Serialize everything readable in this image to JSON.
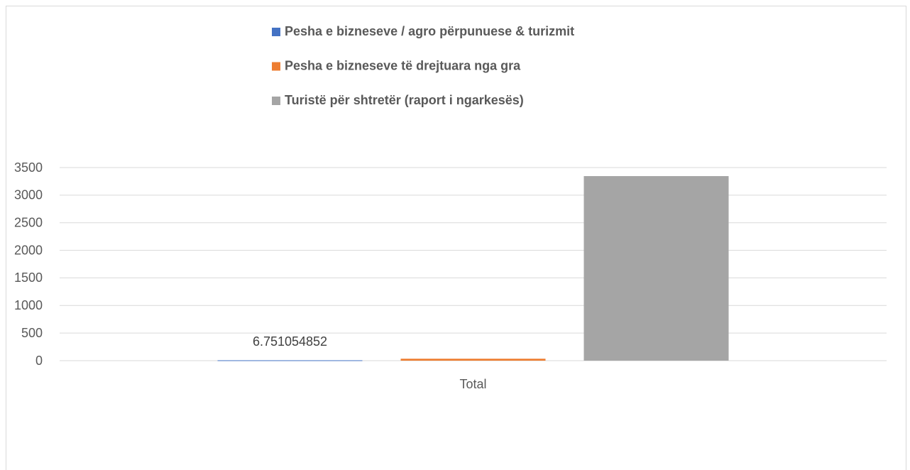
{
  "chart_data": {
    "type": "bar",
    "categories": [
      "Total"
    ],
    "series": [
      {
        "name": "Pesha e bizneseve  / agro përpunuese & turizmit",
        "color": "#4472c4",
        "values": [
          6.751054852
        ]
      },
      {
        "name": "Pesha e bizneseve të drejtuara nga gra",
        "color": "#ed7d31",
        "values": [
          35
        ]
      },
      {
        "name": "Turistë për shtretër (raport i ngarkesës)",
        "color": "#a5a5a5",
        "values": [
          3345
        ]
      }
    ],
    "data_labels": [
      true,
      false,
      false
    ],
    "ylim": [
      0,
      3500
    ],
    "yticks": [
      0,
      500,
      1000,
      1500,
      2000,
      2500,
      3000,
      3500
    ],
    "grid": true,
    "legend": "top"
  }
}
